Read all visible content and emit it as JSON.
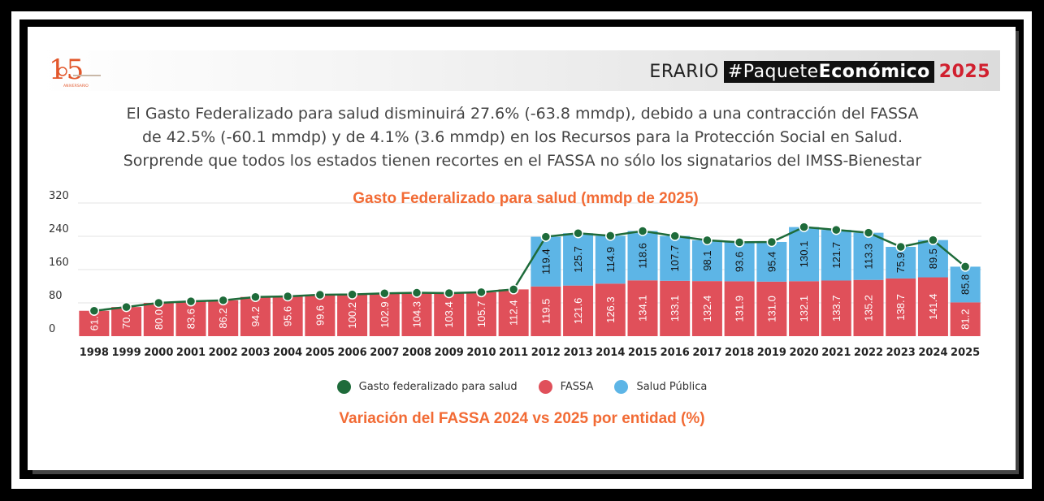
{
  "header": {
    "brand_name": "ERARIO",
    "hashtag_prefix": "#Paquete",
    "hashtag_bold": "Económico",
    "year": "2025"
  },
  "logo": {
    "number": "15",
    "caption": "ANIVERSARIO"
  },
  "description": [
    "El Gasto Federalizado para salud disminuirá 27.6% (-63.8 mmdp), debido a una contracción del FASSA",
    "de 42.5% (-60.1 mmdp) y de 4.1% (3.6 mmdp) en los Recursos para la Protección Social en Salud.",
    "Sorprende que todos los estados tienen recortes en el FASSA no sólo los signatarios del IMSS-Bienestar"
  ],
  "colors": {
    "fassa": "#e0505a",
    "salud_publica": "#5db5e6",
    "total_line": "#1e6b3a",
    "title_orange": "#f26b35"
  },
  "subtitle": "Variación del FASSA 2024 vs 2025 por entidad  (%)",
  "chart_data": {
    "type": "bar",
    "stacked": true,
    "title": "Gasto Federalizado para salud (mmdp de 2025)",
    "categories": [
      "1998",
      "1999",
      "2000",
      "2001",
      "2002",
      "2003",
      "2004",
      "2005",
      "2006",
      "2007",
      "2008",
      "2009",
      "2010",
      "2011",
      "2012",
      "2013",
      "2014",
      "2015",
      "2016",
      "2017",
      "2018",
      "2019",
      "2020",
      "2021",
      "2022",
      "2023",
      "2024",
      "2025"
    ],
    "ylim": [
      0,
      320
    ],
    "yticks": [
      0,
      80,
      160,
      240,
      320
    ],
    "grid": true,
    "legend_position": "bottom",
    "series": [
      {
        "name": "FASSA",
        "type": "bar",
        "values": [
          61.0,
          70.0,
          80.0,
          83.6,
          86.2,
          94.2,
          95.6,
          99.6,
          100.2,
          102.9,
          104.3,
          103.4,
          105.7,
          112.4,
          119.5,
          121.6,
          126.3,
          134.1,
          133.1,
          132.4,
          131.9,
          131.0,
          132.1,
          133.7,
          135.2,
          138.7,
          141.4,
          81.2
        ],
        "labels": [
          "61.",
          "70.",
          "80.0",
          "83.6",
          "86.2",
          "94.2",
          "95.6",
          "99.6",
          "100.2",
          "102.9",
          "104.3",
          "103.4",
          "105.7",
          "112.4",
          "119.5",
          "121.6",
          "126.3",
          "134.1",
          "133.1",
          "132.4",
          "131.9",
          "131.0",
          "132.1",
          "133.7",
          "135.2",
          "138.7",
          "141.4",
          "81.2"
        ]
      },
      {
        "name": "Salud Pública",
        "type": "bar",
        "values": [
          0,
          0,
          0,
          0,
          0,
          0,
          0,
          0,
          0,
          0,
          0,
          0,
          0,
          0,
          119.4,
          125.7,
          114.9,
          118.6,
          107.7,
          98.1,
          93.6,
          95.4,
          130.1,
          121.7,
          113.3,
          75.9,
          89.5,
          85.8
        ],
        "labels": [
          "",
          "",
          "",
          "",
          "",
          "",
          "",
          "",
          "",
          "",
          "",
          "",
          "",
          "",
          "119.4",
          "125.7",
          "114.9",
          "118.6",
          "107.7",
          "98.1",
          "93.6",
          "95.4",
          "130.1",
          "121.7",
          "113.3",
          "75.9",
          "89.5",
          "85.8"
        ]
      },
      {
        "name": "Gasto federalizado para salud",
        "type": "line",
        "values": [
          61.0,
          70.0,
          80.0,
          83.6,
          86.2,
          94.2,
          95.6,
          99.6,
          100.2,
          102.9,
          104.3,
          103.4,
          105.7,
          112.4,
          238.9,
          247.3,
          241.2,
          252.7,
          240.8,
          230.5,
          225.5,
          226.4,
          262.2,
          255.4,
          248.5,
          214.6,
          230.9,
          167.0
        ]
      }
    ]
  }
}
